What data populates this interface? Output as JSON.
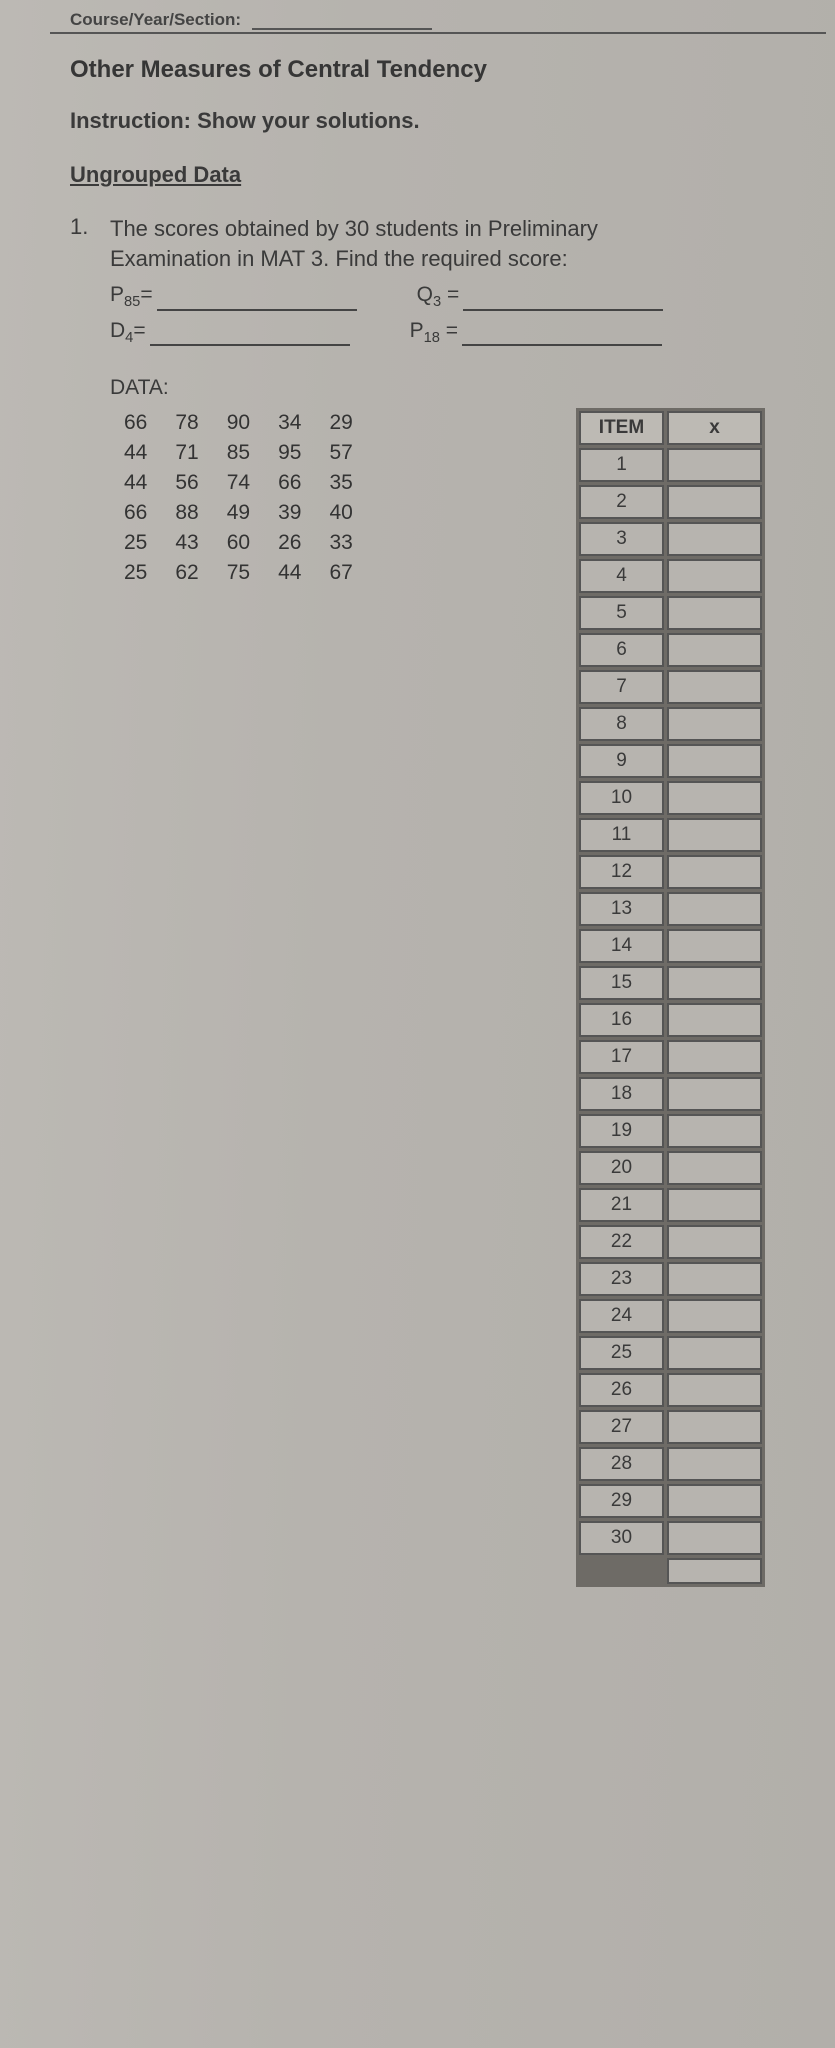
{
  "header": {
    "course_label_prefix": "Course/Year/Section:",
    "title": "Other Measures of Central Tendency",
    "instruction_label": "Instruction:",
    "instruction_text": "Show your solutions.",
    "section_heading": "Ungrouped Data"
  },
  "problem": {
    "number": "1.",
    "text_line1": "The scores obtained by 30 students in Preliminary",
    "text_line2": "Examination in MAT 3. Find the required score:",
    "blanks": [
      {
        "label_main": "P",
        "label_sub": "85",
        "suffix": "="
      },
      {
        "label_main": "Q",
        "label_sub": "3",
        "suffix": " ="
      },
      {
        "label_main": "D",
        "label_sub": "4",
        "suffix": "="
      },
      {
        "label_main": "P",
        "label_sub": "18",
        "suffix": " ="
      }
    ],
    "data_label": "DATA:",
    "data_rows": [
      [
        "66",
        "78",
        "90",
        "34",
        "29"
      ],
      [
        "44",
        "71",
        "85",
        "95",
        "57"
      ],
      [
        "44",
        "56",
        "74",
        "66",
        "35"
      ],
      [
        "66",
        "88",
        "49",
        "39",
        "40"
      ],
      [
        "25",
        "43",
        "60",
        "26",
        "33"
      ],
      [
        "25",
        "62",
        "75",
        "44",
        "67"
      ]
    ]
  },
  "item_table": {
    "col_item": "ITEM",
    "col_x": "x",
    "rows": [
      "1",
      "2",
      "3",
      "4",
      "5",
      "6",
      "7",
      "8",
      "9",
      "10",
      "11",
      "12",
      "13",
      "14",
      "15",
      "16",
      "17",
      "18",
      "19",
      "20",
      "21",
      "22",
      "23",
      "24",
      "25",
      "26",
      "27",
      "28",
      "29",
      "30"
    ]
  },
  "style": {
    "page_bg": "#b9b6b1",
    "text_color": "#3a3a3a",
    "border_color": "#555"
  }
}
